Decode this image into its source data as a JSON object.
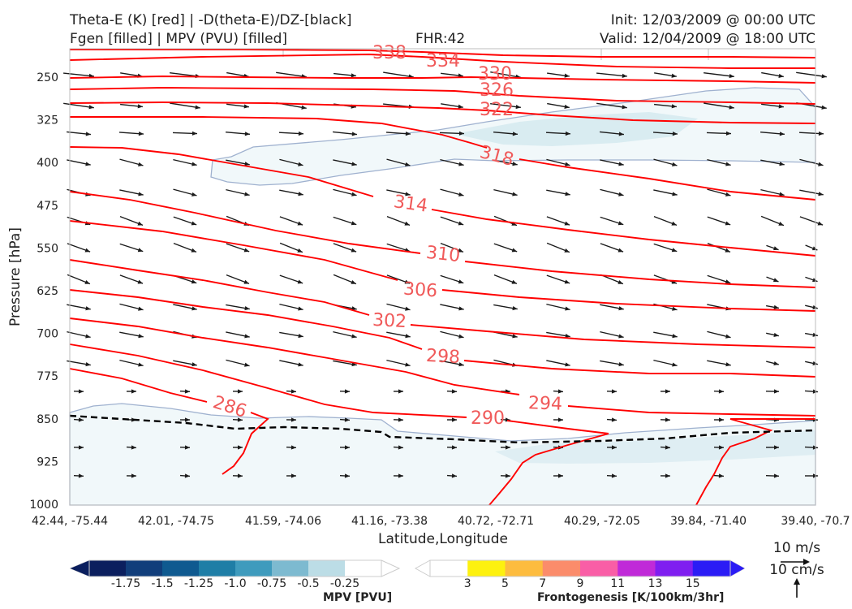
{
  "header": {
    "title_left_line1": "Theta-E (K) [red] | -D(theta-E)/DZ-[black]",
    "title_left_line2": "Fgen [filled] | MPV (PVU) [filled]",
    "fhr": "FHR:42",
    "init": "Init: 12/03/2009 @ 00:00 UTC",
    "valid": "Valid: 12/04/2009 @ 18:00 UTC"
  },
  "chart_data": {
    "type": "cross-section",
    "ylabel": "Pressure [hPa]",
    "xlabel": "Latitude,Longitude",
    "y_ticks": [
      250,
      325,
      400,
      475,
      550,
      625,
      700,
      775,
      850,
      925,
      1000
    ],
    "x_ticks": [
      "42.44, -75.44",
      "42.01, -74.75",
      "41.59, -74.06",
      "41.16, -73.38",
      "40.72, -72.71",
      "40.29, -72.05",
      "39.84, -71.40",
      "39.40, -70.7"
    ],
    "theta_e_contours": [
      286,
      290,
      294,
      298,
      302,
      306,
      310,
      314,
      318,
      322,
      326,
      330,
      334,
      338
    ],
    "theta_e_color": "#ff0000",
    "contour_label_color": "#f05a5a",
    "mpv_colorbar": {
      "label": "MPV [PVU]",
      "ticks": [
        "-1.75",
        "-1.5",
        "-1.25",
        "-1.0",
        "-0.75",
        "-0.5",
        "-0.25"
      ],
      "colors": [
        "#0b1f5e",
        "#113e7b",
        "#0f5a90",
        "#1f7ea6",
        "#3f9bbd",
        "#7dbad0",
        "#bcdde6",
        "#ffffff"
      ]
    },
    "fgen_colorbar": {
      "label": "Frontogenesis [K/100km/3hr]",
      "ticks": [
        "3",
        "5",
        "7",
        "9",
        "11",
        "13",
        "15"
      ],
      "colors": [
        "#ffffff",
        "#fdf10f",
        "#fdbc3f",
        "#fb8c6b",
        "#f95ea6",
        "#c02ad8",
        "#7f1ef0",
        "#2b1cf5"
      ]
    },
    "wind_key": {
      "horizontal": "10 m/s",
      "vertical": "10 cm/s"
    }
  }
}
